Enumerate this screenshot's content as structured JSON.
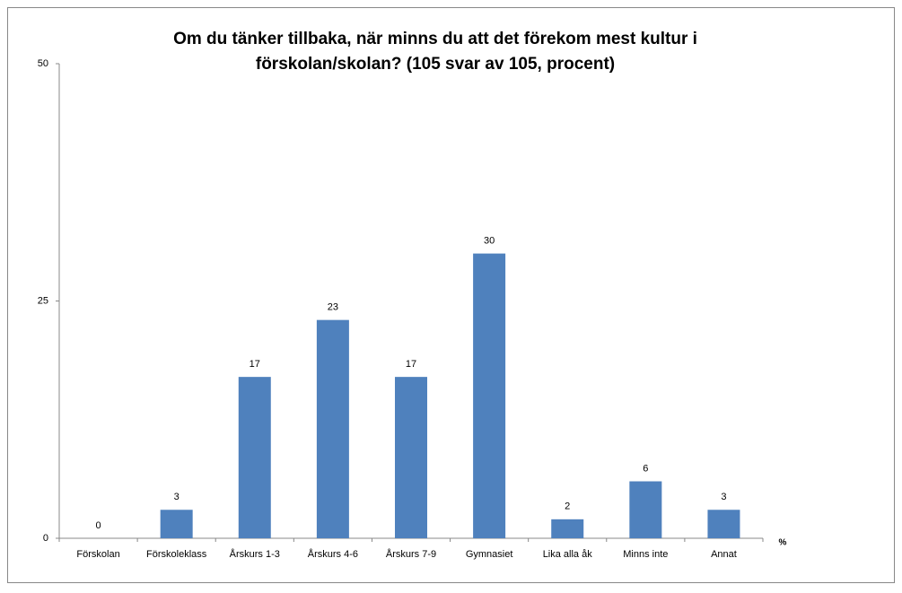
{
  "chart_data": {
    "type": "bar",
    "title": "Om du tänker tillbaka, när minns du att det förekom mest kultur i förskolan/skolan? (105 svar av 105, procent)",
    "x_label": "%",
    "categories": [
      "Förskolan",
      "Förskoleklass",
      "Årskurs 1-3",
      "Årskurs 4-6",
      "Årskurs 7-9",
      "Gymnasiet",
      "Lika alla åk",
      "Minns inte",
      "Annat"
    ],
    "values": [
      0,
      3,
      17,
      23,
      17,
      30,
      2,
      6,
      3
    ],
    "color": "#4f81bd",
    "ylim": [
      0,
      50
    ],
    "yticks": [
      0,
      25,
      50
    ],
    "grid": false
  }
}
